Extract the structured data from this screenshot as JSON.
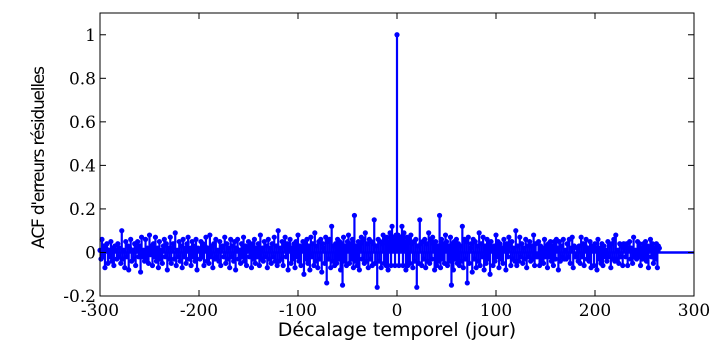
{
  "chart_data": {
    "type": "stem",
    "title": "",
    "xlabel": "Décalage temporel (jour)",
    "ylabel": "ACF d'erreurs résiduelles",
    "xlim": [
      -300,
      300
    ],
    "ylim": [
      -0.2,
      1.1
    ],
    "xticks": [
      -300,
      -200,
      -100,
      0,
      100,
      200,
      300
    ],
    "yticks": [
      -0.2,
      0,
      0.2,
      0.4,
      0.6,
      0.8,
      1
    ],
    "xtick_labels": [
      "-300",
      "-200",
      "-100",
      "0",
      "100",
      "200",
      "300"
    ],
    "ytick_labels": [
      "-0.2",
      "0",
      "0.2",
      "0.4",
      "0.6",
      "0.8",
      "1"
    ],
    "grid": false,
    "legend": "none",
    "series": [
      {
        "color": "#0000ff",
        "x_start": -300,
        "x_step": 1,
        "values": [
          0.01,
          -0.03,
          0.06,
          -0.02,
          0.03,
          -0.07,
          0.02,
          0.04,
          -0.05,
          0.01,
          -0.02,
          0.05,
          -0.04,
          0.02,
          -0.06,
          0.03,
          0.01,
          -0.03,
          0.04,
          -0.02,
          0.02,
          -0.05,
          0.1,
          -0.03,
          0.01,
          -0.07,
          0.05,
          -0.02,
          0.03,
          -0.08,
          0.02,
          0.06,
          -0.04,
          0.01,
          -0.03,
          0.04,
          -0.06,
          0.02,
          0.05,
          -0.02,
          0.03,
          -0.09,
          0.07,
          -0.02,
          0.01,
          -0.04,
          0.06,
          -0.03,
          0.02,
          -0.05,
          0.08,
          -0.01,
          0.03,
          -0.06,
          0.04,
          -0.02,
          0.07,
          -0.04,
          0.02,
          -0.07,
          0.05,
          -0.03,
          0.01,
          -0.05,
          0.03,
          0.06,
          -0.02,
          0.04,
          -0.08,
          0.02,
          -0.03,
          0.07,
          -0.05,
          0.02,
          0.04,
          -0.03,
          0.09,
          -0.06,
          0.01,
          -0.02,
          0.05,
          -0.04,
          0.03,
          -0.07,
          0.06,
          -0.02,
          0.02,
          -0.05,
          0.04,
          0.07,
          -0.03,
          0.02,
          -0.06,
          0.05,
          -0.02,
          0.03,
          -0.04,
          0.06,
          -0.08,
          0.02,
          0.01,
          -0.03,
          0.05,
          -0.02,
          0.04,
          -0.06,
          0.03,
          0.07,
          -0.04,
          0.02,
          -0.05,
          0.08,
          -0.02,
          0.03,
          -0.07,
          0.04,
          -0.03,
          0.06,
          -0.02,
          0.01,
          -0.04,
          0.05,
          -0.06,
          0.02,
          0.03,
          -0.02,
          0.07,
          -0.05,
          0.04,
          -0.03,
          0.02,
          -0.07,
          0.06,
          -0.02,
          0.03,
          -0.04,
          0.05,
          -0.08,
          0.02,
          0.06,
          -0.03,
          0.01,
          -0.05,
          0.04,
          -0.02,
          0.07,
          -0.04,
          0.03,
          -0.06,
          0.02,
          0.05,
          -0.02,
          0.03,
          -0.07,
          0.04,
          -0.03,
          0.06,
          -0.05,
          0.02,
          -0.02,
          0.04,
          -0.06,
          0.08,
          -0.03,
          0.02,
          -0.04,
          0.05,
          -0.02,
          0.03,
          -0.07,
          0.06,
          -0.03,
          0.02,
          -0.05,
          0.04,
          -0.02,
          0.07,
          -0.04,
          0.03,
          -0.06,
          0.1,
          -0.04,
          0.02,
          -0.03,
          0.05,
          -0.06,
          0.03,
          0.07,
          -0.02,
          0.04,
          -0.08,
          0.03,
          0.06,
          -0.05,
          0.02,
          -0.03,
          0.04,
          -0.07,
          0.05,
          -0.02,
          0.08,
          -0.04,
          0.03,
          -0.06,
          0.02,
          0.05,
          -0.1,
          0.04,
          -0.03,
          0.06,
          -0.05,
          0.03,
          -0.08,
          0.07,
          -0.02,
          0.04,
          -0.06,
          0.09,
          -0.04,
          0.03,
          -0.07,
          0.05,
          -0.03,
          0.06,
          -0.09,
          0.04,
          0.02,
          -0.05,
          0.07,
          -0.14,
          0.05,
          -0.03,
          0.06,
          -0.07,
          0.12,
          -0.04,
          0.03,
          -0.06,
          0.04,
          -0.05,
          0.06,
          -0.03,
          0.05,
          -0.08,
          0.04,
          -0.15,
          0.07,
          -0.04,
          0.03,
          -0.06,
          0.05,
          0.08,
          -0.05,
          0.04,
          -0.03,
          0.06,
          -0.07,
          0.17,
          -0.04,
          0.03,
          -0.06,
          0.05,
          -0.08,
          0.04,
          0.07,
          -0.03,
          0.06,
          -0.05,
          0.09,
          -0.04,
          0.04,
          -0.07,
          0.06,
          -0.03,
          0.05,
          -0.06,
          0.04,
          0.15,
          -0.05,
          0.03,
          -0.16,
          0.06,
          -0.04,
          0.05,
          -0.07,
          0.04,
          0.08,
          -0.05,
          0.06,
          -0.06,
          0.07,
          -0.08,
          0.05,
          0.09,
          -0.06,
          0.12,
          0.05,
          0.07,
          -0.06,
          0.08,
          1,
          0.08,
          -0.06,
          0.07,
          0.05,
          0.12,
          -0.06,
          0.09,
          0.05,
          -0.08,
          0.07,
          -0.06,
          0.06,
          -0.05,
          0.08,
          0.04,
          -0.07,
          0.05,
          -0.04,
          0.06,
          -0.16,
          0.03,
          -0.05,
          0.15,
          0.04,
          -0.06,
          0.05,
          -0.03,
          0.06,
          -0.07,
          0.04,
          -0.04,
          0.09,
          -0.05,
          0.06,
          -0.03,
          0.07,
          0.04,
          -0.08,
          0.05,
          -0.06,
          0.03,
          -0.04,
          0.17,
          -0.07,
          0.06,
          -0.03,
          0.04,
          -0.05,
          0.08,
          0.05,
          -0.06,
          0.03,
          -0.04,
          0.07,
          -0.15,
          0.04,
          -0.08,
          0.05,
          -0.03,
          0.06,
          -0.05,
          0.04,
          -0.06,
          0.03,
          -0.04,
          0.12,
          -0.07,
          0.06,
          -0.03,
          0.05,
          -0.14,
          0.07,
          -0.05,
          0.02,
          0.04,
          -0.09,
          0.06,
          -0.03,
          0.05,
          -0.07,
          0.03,
          -0.04,
          0.09,
          -0.06,
          0.04,
          -0.02,
          0.07,
          -0.08,
          0.03,
          -0.05,
          0.06,
          -0.03,
          0.04,
          -0.1,
          0.05,
          0.02,
          -0.06,
          0.03,
          -0.04,
          0.08,
          -0.02,
          0.05,
          -0.07,
          0.04,
          -0.03,
          0.02,
          -0.05,
          0.06,
          0.03,
          -0.08,
          0.04,
          -0.02,
          0.07,
          0.03,
          -0.06,
          0.05,
          -0.03,
          0.02,
          -0.04,
          0.1,
          -0.06,
          0.03,
          -0.04,
          0.07,
          -0.02,
          0.04,
          -0.05,
          0.02,
          -0.03,
          0.06,
          -0.07,
          0.03,
          -0.02,
          0.05,
          -0.04,
          0.03,
          -0.03,
          0.08,
          -0.06,
          0.04,
          -0.02,
          -0.02,
          0.05,
          -0.06,
          0.03,
          -0.04,
          0.02,
          -0.05,
          0.06,
          -0.02,
          0.03,
          -0.07,
          0.04,
          -0.02,
          0.05,
          -0.04,
          0.03,
          -0.06,
          0.05,
          -0.03,
          0.06,
          0.02,
          -0.08,
          0.05,
          -0.04,
          0.03,
          -0.02,
          0.06,
          -0.03,
          0.01,
          -0.03,
          0.04,
          -0.02,
          0.06,
          -0.05,
          0.02,
          0.07,
          -0.07,
          0.03,
          -0.02,
          -0.02,
          0.02,
          -0.04,
          0.03,
          -0.05,
          0.07,
          -0.02,
          0.04,
          -0.06,
          0.03,
          0.06,
          -0.03,
          0.02,
          -0.04,
          0.05,
          -0.07,
          0.03,
          0.02,
          -0.06,
          0.04,
          0.02,
          -0.08,
          0.06,
          -0.03,
          0.02,
          -0.05,
          0.04,
          -0.06,
          0.03,
          -0.02,
          0.01,
          -0.04,
          0.05,
          -0.02,
          0.03,
          -0.07,
          0.04,
          -0.03,
          0.06,
          -0.04,
          0.08,
          -0.03,
          0.01,
          -0.05,
          0.04,
          -0.02,
          0.03,
          -0.06,
          0.04,
          0.02,
          -0.02,
          0.04,
          -0.06,
          0.02,
          0.05,
          -0.03,
          0.02,
          -0.05,
          0.07,
          -0.02,
          0.01,
          -0.03,
          0.05,
          -0.02,
          0.04,
          -0.06,
          0.02,
          -0.03,
          0.04,
          -0.02,
          0.05,
          -0.04,
          0.03,
          -0.07,
          0.02,
          0.06,
          -0.02,
          0.04,
          -0.05,
          0.02,
          -0.03,
          0.04,
          -0.07,
          0.03,
          0.02
        ]
      }
    ]
  }
}
